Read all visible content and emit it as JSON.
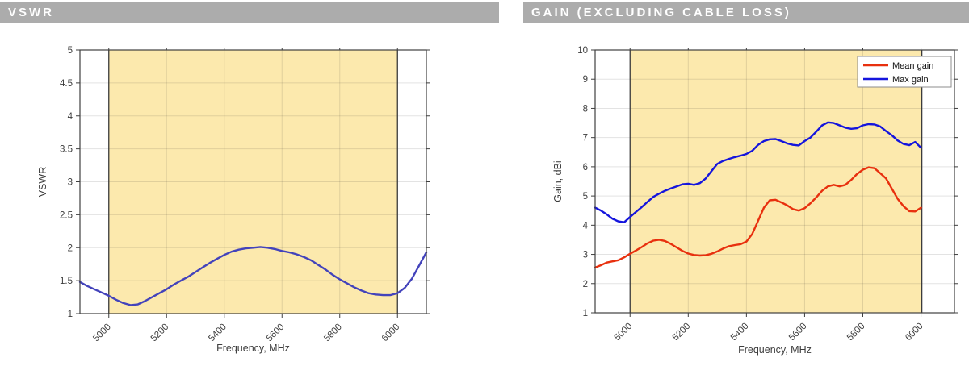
{
  "panels": {
    "vswr": {
      "title": "VSWR"
    },
    "gain": {
      "title": "GAIN (EXCLUDING CABLE LOSS)"
    }
  },
  "colors": {
    "title_bar_bg": "#acacac",
    "title_text": "#ffffff",
    "band_fill": "#fce9ad",
    "band_edge": "#3c3c3c",
    "grid": "rgba(38,38,38,0.13)",
    "axis": "#3f3f3f",
    "text": "#3d3d3d",
    "legend_border": "#8c8c8c",
    "vswr_line": "#4343bb",
    "mean_gain_line": "#e8300e",
    "max_gain_line": "#1515dd"
  },
  "chart_data": [
    {
      "name": "vswr",
      "type": "line",
      "title": "",
      "xlabel": "Frequency, MHz",
      "ylabel": "VSWR",
      "xlim": [
        4900,
        6100
      ],
      "ylim": [
        1,
        5
      ],
      "xticks": [
        5000,
        5200,
        5400,
        5600,
        5800,
        6000
      ],
      "yticks": [
        1,
        1.5,
        2,
        2.5,
        3,
        3.5,
        4,
        4.5,
        5
      ],
      "grid": true,
      "band_x": [
        5000,
        6000
      ],
      "legend": false,
      "series": [
        {
          "name": "VSWR",
          "color": "#4343bb",
          "x": [
            4900,
            4925,
            4950,
            4975,
            5000,
            5025,
            5050,
            5075,
            5100,
            5125,
            5150,
            5175,
            5200,
            5225,
            5250,
            5275,
            5300,
            5325,
            5350,
            5375,
            5400,
            5425,
            5450,
            5475,
            5500,
            5525,
            5550,
            5575,
            5600,
            5625,
            5650,
            5675,
            5700,
            5725,
            5750,
            5775,
            5800,
            5825,
            5850,
            5875,
            5900,
            5925,
            5950,
            5975,
            6000,
            6025,
            6050,
            6075,
            6100
          ],
          "y": [
            1.48,
            1.42,
            1.37,
            1.32,
            1.27,
            1.21,
            1.16,
            1.13,
            1.14,
            1.19,
            1.25,
            1.31,
            1.37,
            1.44,
            1.5,
            1.56,
            1.63,
            1.7,
            1.77,
            1.83,
            1.89,
            1.94,
            1.97,
            1.99,
            2.0,
            2.01,
            2.0,
            1.98,
            1.95,
            1.93,
            1.9,
            1.86,
            1.81,
            1.74,
            1.67,
            1.59,
            1.52,
            1.46,
            1.4,
            1.35,
            1.31,
            1.29,
            1.28,
            1.28,
            1.31,
            1.39,
            1.53,
            1.73,
            1.93
          ]
        }
      ]
    },
    {
      "name": "gain",
      "type": "line",
      "title": "",
      "xlabel": "Frequency, MHz",
      "ylabel": "Gain, dBi",
      "xlim": [
        4880,
        6115
      ],
      "ylim": [
        1,
        10
      ],
      "xticks": [
        5000,
        5200,
        5400,
        5600,
        5800,
        6000
      ],
      "yticks": [
        1,
        2,
        3,
        4,
        5,
        6,
        7,
        8,
        9,
        10
      ],
      "grid": true,
      "band_x": [
        5000,
        6003
      ],
      "legend": true,
      "legend_position": "top-right",
      "series": [
        {
          "name": "Mean gain",
          "color": "#e8300e",
          "x": [
            4880,
            4900,
            4920,
            4940,
            4960,
            4980,
            5000,
            5020,
            5040,
            5060,
            5080,
            5100,
            5120,
            5140,
            5160,
            5180,
            5200,
            5220,
            5240,
            5260,
            5280,
            5300,
            5320,
            5340,
            5360,
            5380,
            5400,
            5420,
            5440,
            5460,
            5480,
            5500,
            5520,
            5540,
            5560,
            5580,
            5600,
            5620,
            5640,
            5660,
            5680,
            5700,
            5720,
            5740,
            5760,
            5780,
            5800,
            5820,
            5840,
            5860,
            5880,
            5900,
            5920,
            5940,
            5960,
            5980,
            6000
          ],
          "y": [
            2.55,
            2.63,
            2.72,
            2.76,
            2.8,
            2.9,
            3.02,
            3.13,
            3.25,
            3.38,
            3.47,
            3.5,
            3.46,
            3.36,
            3.24,
            3.12,
            3.03,
            2.98,
            2.96,
            2.97,
            3.02,
            3.1,
            3.2,
            3.28,
            3.32,
            3.35,
            3.44,
            3.7,
            4.15,
            4.6,
            4.85,
            4.87,
            4.78,
            4.68,
            4.55,
            4.5,
            4.58,
            4.75,
            4.95,
            5.18,
            5.33,
            5.38,
            5.33,
            5.38,
            5.55,
            5.75,
            5.9,
            5.98,
            5.95,
            5.78,
            5.6,
            5.25,
            4.9,
            4.65,
            4.48,
            4.47,
            4.6
          ]
        },
        {
          "name": "Max gain",
          "color": "#1515dd",
          "x": [
            4880,
            4900,
            4920,
            4940,
            4960,
            4980,
            5000,
            5020,
            5040,
            5060,
            5080,
            5100,
            5120,
            5140,
            5160,
            5180,
            5200,
            5220,
            5240,
            5260,
            5280,
            5300,
            5320,
            5340,
            5360,
            5380,
            5400,
            5420,
            5440,
            5460,
            5480,
            5500,
            5520,
            5540,
            5560,
            5580,
            5600,
            5620,
            5640,
            5660,
            5680,
            5700,
            5720,
            5740,
            5760,
            5780,
            5800,
            5820,
            5840,
            5860,
            5880,
            5900,
            5920,
            5940,
            5960,
            5980,
            6000
          ],
          "y": [
            4.6,
            4.5,
            4.37,
            4.22,
            4.13,
            4.1,
            4.28,
            4.45,
            4.62,
            4.8,
            4.97,
            5.08,
            5.18,
            5.26,
            5.33,
            5.4,
            5.42,
            5.38,
            5.44,
            5.6,
            5.85,
            6.1,
            6.2,
            6.27,
            6.33,
            6.38,
            6.44,
            6.55,
            6.75,
            6.88,
            6.94,
            6.95,
            6.88,
            6.8,
            6.75,
            6.73,
            6.88,
            7.0,
            7.2,
            7.42,
            7.52,
            7.5,
            7.42,
            7.34,
            7.3,
            7.32,
            7.42,
            7.46,
            7.45,
            7.38,
            7.22,
            7.08,
            6.9,
            6.78,
            6.74,
            6.85,
            6.65
          ]
        }
      ]
    }
  ]
}
